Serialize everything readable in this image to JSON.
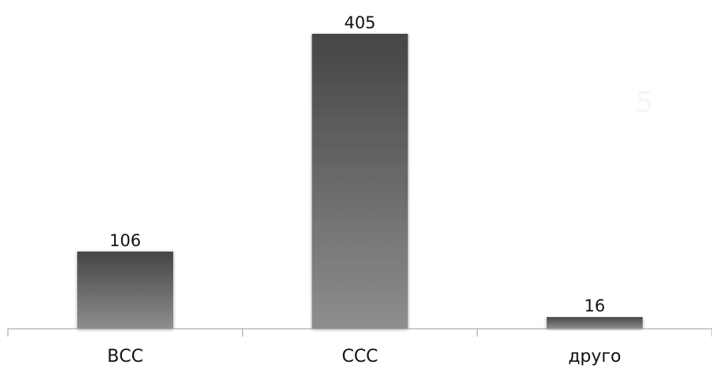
{
  "chart_data": {
    "type": "bar",
    "categories": [
      "ВСС",
      "ССС",
      "друго"
    ],
    "values": [
      106,
      405,
      16
    ],
    "data_labels": [
      "106",
      "405",
      "16"
    ],
    "title": "",
    "xlabel": "",
    "ylabel": "",
    "ylim": [
      0,
      405
    ],
    "grid": false,
    "legend": "none",
    "bar_colors": [
      "#4a4a4a",
      "#8c8c8c"
    ]
  },
  "overlay": {
    "slide_number": "5"
  }
}
